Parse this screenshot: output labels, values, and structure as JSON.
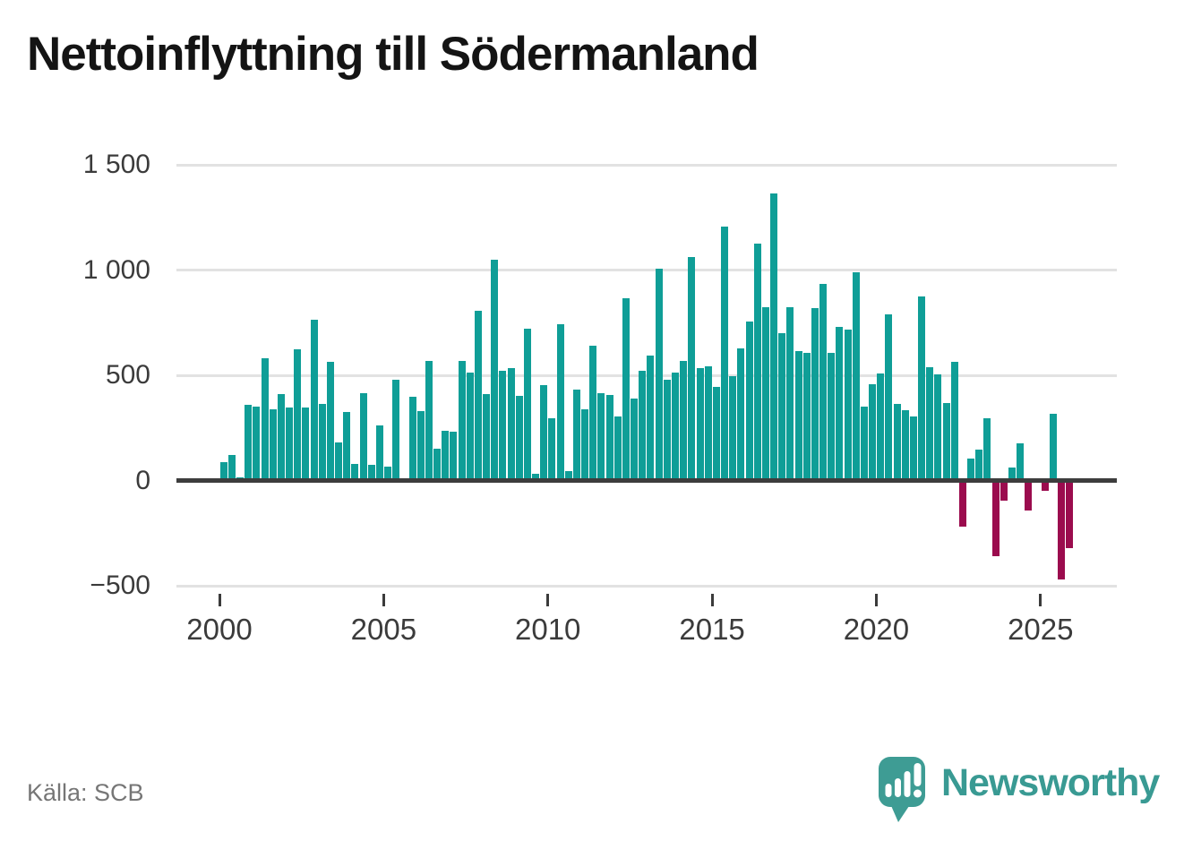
{
  "title": "Nettoinflyttning till Södermanland",
  "source": "Källa: SCB",
  "branding": {
    "logo_text": "Newsworthy",
    "logo_icon": "speech-bubble-with-bar-chart-and-exclamation"
  },
  "colors": {
    "positive_bar": "#0f9e97",
    "negative_bar": "#9b0c4e",
    "grid": "#e2e2e2",
    "zero_line": "#3d3d3d",
    "axis_text": "#3b3b3b",
    "source_text": "#767676",
    "logo_teal": "#399a93",
    "title_text": "#141414",
    "background": "#ffffff"
  },
  "chart_data": {
    "type": "bar",
    "title": "Nettoinflyttning till Södermanland",
    "xlabel": "",
    "ylabel": "",
    "x_unit": "quarter",
    "ylim": [
      -500,
      1500
    ],
    "grid": true,
    "legend": "none",
    "y_ticks": [
      "1 500",
      "1 000",
      "500",
      "0",
      "−500"
    ],
    "y_tick_values": [
      1500,
      1000,
      500,
      0,
      -500
    ],
    "x_ticks": [
      "2000",
      "2005",
      "2010",
      "2015",
      "2020",
      "2025"
    ],
    "x_tick_values": [
      2000,
      2005,
      2010,
      2015,
      2020,
      2025
    ],
    "series_by_year": [
      {
        "year": 2000,
        "values": [
          87,
          121,
          17,
          360
        ]
      },
      {
        "year": 2001,
        "values": [
          350,
          581,
          338,
          410
        ]
      },
      {
        "year": 2002,
        "values": [
          348,
          622,
          345,
          762
        ]
      },
      {
        "year": 2003,
        "values": [
          364,
          566,
          183,
          327
        ]
      },
      {
        "year": 2004,
        "values": [
          80,
          413,
          76,
          264
        ]
      },
      {
        "year": 2005,
        "values": [
          68,
          479,
          0,
          397
        ]
      },
      {
        "year": 2006,
        "values": [
          328,
          569,
          153,
          236
        ]
      },
      {
        "year": 2007,
        "values": [
          232,
          567,
          515,
          806
        ]
      },
      {
        "year": 2008,
        "values": [
          412,
          1049,
          522,
          535
        ]
      },
      {
        "year": 2009,
        "values": [
          402,
          723,
          33,
          455
        ]
      },
      {
        "year": 2010,
        "values": [
          296,
          743,
          44,
          431
        ]
      },
      {
        "year": 2011,
        "values": [
          338,
          642,
          417,
          405
        ]
      },
      {
        "year": 2012,
        "values": [
          303,
          868,
          388,
          520
        ]
      },
      {
        "year": 2013,
        "values": [
          594,
          1007,
          481,
          514
        ]
      },
      {
        "year": 2014,
        "values": [
          569,
          1064,
          536,
          543
        ]
      },
      {
        "year": 2015,
        "values": [
          446,
          1205,
          496,
          626
        ]
      },
      {
        "year": 2016,
        "values": [
          756,
          1126,
          822,
          1363
        ]
      },
      {
        "year": 2017,
        "values": [
          700,
          822,
          617,
          607
        ]
      },
      {
        "year": 2018,
        "values": [
          819,
          933,
          607,
          729
        ]
      },
      {
        "year": 2019,
        "values": [
          719,
          989,
          350,
          457
        ]
      },
      {
        "year": 2020,
        "values": [
          507,
          789,
          364,
          335
        ]
      },
      {
        "year": 2021,
        "values": [
          305,
          876,
          537,
          504
        ]
      },
      {
        "year": 2022,
        "values": [
          369,
          564,
          -219,
          105
        ]
      },
      {
        "year": 2023,
        "values": [
          148,
          294,
          -360,
          -96
        ]
      },
      {
        "year": 2024,
        "values": [
          60,
          177,
          -141,
          0
        ]
      },
      {
        "year": 2025,
        "values": [
          -50,
          319,
          -468,
          -322
        ]
      }
    ]
  }
}
